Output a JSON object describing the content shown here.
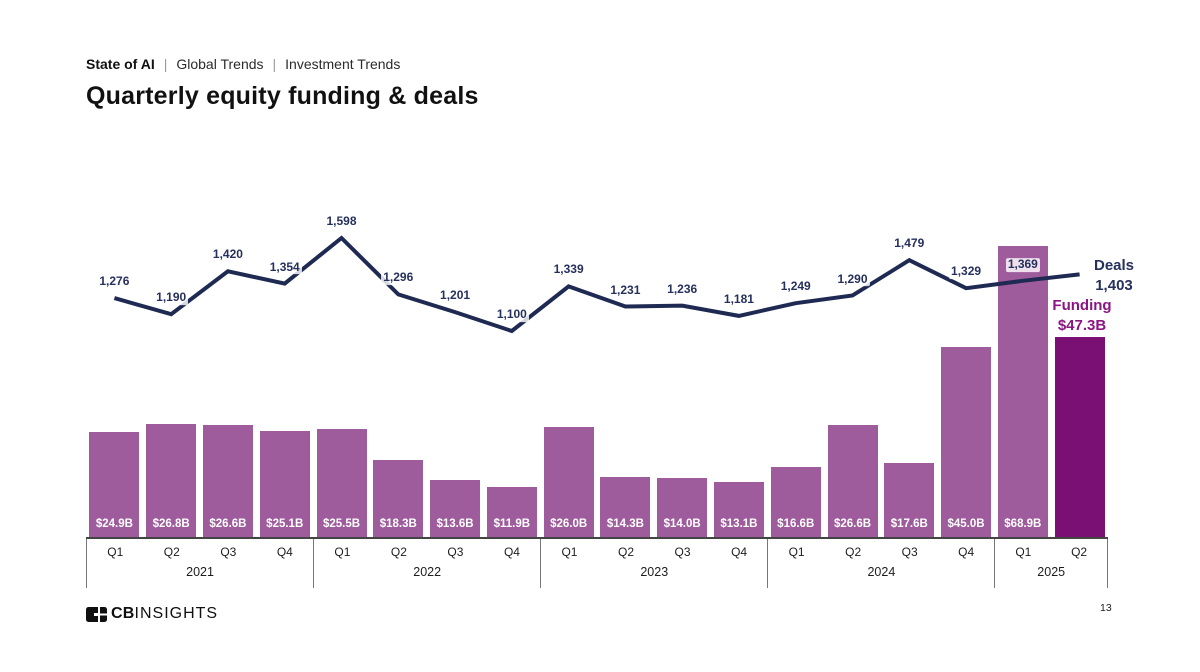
{
  "header": {
    "breadcrumb": {
      "brand": "State of AI",
      "separator": "|",
      "items": [
        "Global Trends",
        "Investment Trends"
      ]
    },
    "title": "Quarterly equity funding & deals"
  },
  "chart_data": {
    "type": "bar+line",
    "quarter_groups": [
      {
        "year": "2021",
        "quarters": [
          "Q1",
          "Q2",
          "Q3",
          "Q4"
        ]
      },
      {
        "year": "2022",
        "quarters": [
          "Q1",
          "Q2",
          "Q3",
          "Q4"
        ]
      },
      {
        "year": "2023",
        "quarters": [
          "Q1",
          "Q2",
          "Q3",
          "Q4"
        ]
      },
      {
        "year": "2024",
        "quarters": [
          "Q1",
          "Q2",
          "Q3",
          "Q4"
        ]
      },
      {
        "year": "2025",
        "quarters": [
          "Q1",
          "Q2"
        ]
      }
    ],
    "series": [
      {
        "name": "Funding",
        "type": "bar",
        "unit": "$B",
        "values": [
          24.9,
          26.8,
          26.6,
          25.1,
          25.5,
          18.3,
          13.6,
          11.9,
          26.0,
          14.3,
          14.0,
          13.1,
          16.6,
          26.6,
          17.6,
          45.0,
          68.9,
          47.3
        ],
        "labels": [
          "$24.9B",
          "$26.8B",
          "$26.6B",
          "$25.1B",
          "$25.5B",
          "$18.3B",
          "$13.6B",
          "$11.9B",
          "$26.0B",
          "$14.3B",
          "$14.0B",
          "$13.1B",
          "$16.6B",
          "$26.6B",
          "$17.6B",
          "$45.0B",
          "$68.9B",
          ""
        ],
        "color": "#9e5c9c",
        "highlight_color": "#7a0f74",
        "highlight_index": 17
      },
      {
        "name": "Deals",
        "type": "line",
        "values": [
          1276,
          1190,
          1420,
          1354,
          1598,
          1296,
          1201,
          1100,
          1339,
          1231,
          1236,
          1181,
          1249,
          1290,
          1479,
          1329,
          1369,
          1403
        ],
        "labels": [
          "1,276",
          "1,190",
          "1,420",
          "1,354",
          "1,598",
          "1,296",
          "1,201",
          "1,100",
          "1,339",
          "1,231",
          "1,236",
          "1,181",
          "1,249",
          "1,290",
          "1,479",
          "1,329",
          "1,369",
          ""
        ],
        "color": "#1f2a52",
        "label_color": "#26305c"
      }
    ],
    "end_labels": {
      "deals": {
        "title": "Deals",
        "value": "1,403"
      },
      "funding": {
        "title": "Funding",
        "value": "$47.3B"
      }
    },
    "grid": "off",
    "y_axis": "hidden"
  },
  "footer": {
    "logo_cb": "CB",
    "logo_insights": "INSIGHTS",
    "page_number": "13"
  }
}
